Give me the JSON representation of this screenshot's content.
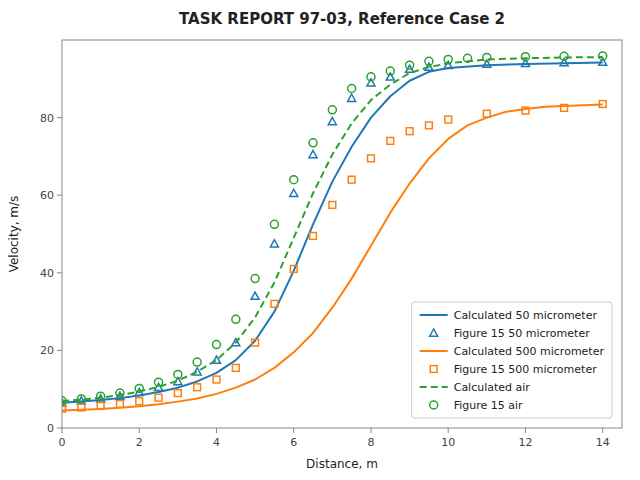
{
  "chart_data": {
    "type": "line",
    "title": "TASK REPORT 97-03, Reference Case 2",
    "x_label": "Distance, m",
    "y_label": "Velocity, m/s",
    "xlim": [
      0,
      14.5
    ],
    "ylim": [
      0,
      100
    ],
    "xticks": [
      0,
      2,
      4,
      6,
      8,
      10,
      12,
      14
    ],
    "yticks": [
      0,
      20,
      40,
      60,
      80
    ],
    "grid": false,
    "legend": "lower right",
    "series": [
      {
        "name": "Calculated 50 micrometer",
        "type": "line",
        "line_style": "solid",
        "color": "#1f77b4",
        "x": [
          0.0,
          0.5,
          1.0,
          1.5,
          2.0,
          2.5,
          3.0,
          3.5,
          4.0,
          4.5,
          5.0,
          5.5,
          6.0,
          6.5,
          7.0,
          7.5,
          8.0,
          8.5,
          9.0,
          9.5,
          10.0,
          11.0,
          12.0,
          13.0,
          14.0
        ],
        "values": [
          6.5,
          6.8,
          7.2,
          7.7,
          8.4,
          9.3,
          10.4,
          12.0,
          14.2,
          17.5,
          22.5,
          30.0,
          40.5,
          52.5,
          63.5,
          72.5,
          80.0,
          85.5,
          89.5,
          91.8,
          92.8,
          93.5,
          93.8,
          94.0,
          94.2
        ]
      },
      {
        "name": "Figure 15 50 micrometer",
        "type": "scatter",
        "marker": "triangle",
        "color": "#1f77b4",
        "x": [
          0.0,
          0.5,
          1.0,
          1.5,
          2.0,
          2.5,
          3.0,
          3.5,
          4.0,
          4.5,
          5.0,
          5.5,
          6.0,
          6.5,
          7.0,
          7.5,
          8.0,
          8.5,
          9.0,
          9.5,
          10.0,
          11.0,
          12.0,
          13.0,
          14.0
        ],
        "values": [
          6.5,
          7.0,
          7.5,
          8.2,
          9.2,
          10.5,
          12.0,
          14.5,
          17.5,
          22.0,
          34.0,
          47.5,
          60.5,
          70.5,
          79.0,
          85.0,
          89.0,
          90.5,
          92.5,
          93.0,
          93.5,
          93.8,
          94.0,
          94.2,
          94.3
        ]
      },
      {
        "name": "Calculated 500 micrometer",
        "type": "line",
        "line_style": "solid",
        "color": "#ff7f0e",
        "x": [
          0.0,
          0.5,
          1.0,
          1.5,
          2.0,
          2.5,
          3.0,
          3.5,
          4.0,
          4.5,
          5.0,
          5.5,
          6.0,
          6.5,
          7.0,
          7.5,
          8.0,
          8.5,
          9.0,
          9.5,
          10.0,
          10.5,
          11.0,
          11.5,
          12.0,
          12.5,
          13.0,
          13.5,
          14.0
        ],
        "values": [
          4.5,
          4.7,
          4.9,
          5.2,
          5.6,
          6.1,
          6.8,
          7.6,
          8.8,
          10.4,
          12.5,
          15.5,
          19.5,
          24.5,
          31.0,
          38.5,
          47.0,
          55.5,
          63.0,
          69.5,
          74.5,
          78.0,
          80.0,
          81.5,
          82.2,
          82.8,
          83.0,
          83.2,
          83.4
        ]
      },
      {
        "name": "Figure 15 500 micrometer",
        "type": "scatter",
        "marker": "square",
        "color": "#ff7f0e",
        "x": [
          0.0,
          0.5,
          1.0,
          1.5,
          2.0,
          2.5,
          3.0,
          3.5,
          4.0,
          4.5,
          5.0,
          5.5,
          6.0,
          6.5,
          7.0,
          7.5,
          8.0,
          8.5,
          9.0,
          9.5,
          10.0,
          11.0,
          12.0,
          13.0,
          14.0
        ],
        "values": [
          5.0,
          5.3,
          5.7,
          6.2,
          6.9,
          7.8,
          9.0,
          10.5,
          12.5,
          15.5,
          22.0,
          32.0,
          41.0,
          49.5,
          57.5,
          64.0,
          69.5,
          74.0,
          76.5,
          78.0,
          79.5,
          81.0,
          81.8,
          82.5,
          83.5
        ]
      },
      {
        "name": "Calculated air",
        "type": "line",
        "line_style": "dashed",
        "color": "#2ca02c",
        "x": [
          0.0,
          0.5,
          1.0,
          1.5,
          2.0,
          2.5,
          3.0,
          3.5,
          4.0,
          4.5,
          5.0,
          5.5,
          6.0,
          6.5,
          7.0,
          7.5,
          8.0,
          8.5,
          9.0,
          9.5,
          10.0,
          11.0,
          12.0,
          13.0,
          14.0
        ],
        "values": [
          7.0,
          7.3,
          7.8,
          8.5,
          9.4,
          10.6,
          12.2,
          14.5,
          17.5,
          22.0,
          28.5,
          37.5,
          49.0,
          60.5,
          70.5,
          78.5,
          84.5,
          88.5,
          91.5,
          93.0,
          94.0,
          95.0,
          95.3,
          95.5,
          95.6
        ]
      },
      {
        "name": "Figure 15 air",
        "type": "scatter",
        "marker": "circle",
        "color": "#2ca02c",
        "x": [
          0.0,
          0.5,
          1.0,
          1.5,
          2.0,
          2.5,
          3.0,
          3.5,
          4.0,
          4.5,
          5.0,
          5.5,
          6.0,
          6.5,
          7.0,
          7.5,
          8.0,
          8.5,
          9.0,
          9.5,
          10.0,
          10.5,
          11.0,
          12.0,
          13.0,
          14.0
        ],
        "values": [
          7.0,
          7.5,
          8.2,
          9.0,
          10.2,
          11.8,
          13.8,
          17.0,
          21.5,
          28.0,
          38.5,
          52.5,
          64.0,
          73.5,
          82.0,
          87.5,
          90.5,
          92.0,
          93.5,
          94.5,
          95.0,
          95.3,
          95.5,
          95.7,
          95.8,
          95.9
        ]
      }
    ]
  }
}
